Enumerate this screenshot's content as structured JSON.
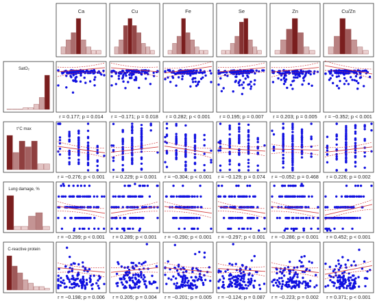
{
  "chart_data": {
    "type": "scatter",
    "title": "",
    "description_kind": "correlation matrix with marginal histograms",
    "columns": [
      "Ca",
      "Cu",
      "Fe",
      "Se",
      "Zn",
      "Cu/Zn"
    ],
    "rows": [
      "SatO₂",
      "t°C max",
      "Lung damage, %",
      "C-reactive protein"
    ],
    "column_histograms": [
      [
        2,
        4,
        6,
        10,
        4,
        2,
        1,
        1
      ],
      [
        2,
        4,
        8,
        10,
        8,
        6,
        3,
        2,
        1
      ],
      [
        1,
        3,
        5,
        10,
        6,
        4,
        2,
        1,
        1
      ],
      [
        1,
        1,
        3,
        5,
        9,
        10,
        4,
        2,
        1
      ],
      [
        1,
        4,
        7,
        10,
        6,
        2,
        1
      ],
      [
        2,
        5,
        10,
        7,
        4,
        2,
        1
      ]
    ],
    "row_histograms": [
      [
        0.1,
        0.1,
        0.1,
        0.5,
        0.5,
        1.5,
        3.5,
        10
      ],
      [
        6,
        3,
        5,
        4,
        5,
        1,
        1
      ],
      [
        10,
        1,
        1,
        4,
        5,
        1
      ],
      [
        10,
        7,
        5,
        3,
        2,
        1,
        1,
        0.5
      ]
    ],
    "stats": [
      [
        {
          "r": "0.177",
          "p": "p = 0.014"
        },
        {
          "r": "−0.171",
          "p": "p = 0.018"
        },
        {
          "r": "0.282",
          "p": "p < 0.001"
        },
        {
          "r": "0.195",
          "p": "p = 0.007"
        },
        {
          "r": "0.203",
          "p": "p = 0.005"
        },
        {
          "r": "−0.352",
          "p": "p < 0.001"
        }
      ],
      [
        {
          "r": "−0.276",
          "p": "p < 0.001"
        },
        {
          "r": "0.229",
          "p": "p = 0.001"
        },
        {
          "r": "−0.304",
          "p": "p < 0.001"
        },
        {
          "r": "−0.129",
          "p": "p = 0.074"
        },
        {
          "r": "−0.052",
          "p": "p = 0.468"
        },
        {
          "r": "0.226",
          "p": "p = 0.002"
        }
      ],
      [
        {
          "r": "−0.299",
          "p": "p < 0.001"
        },
        {
          "r": "0.289",
          "p": "p < 0.001"
        },
        {
          "r": "−0.290",
          "p": "p < 0.001"
        },
        {
          "r": "−0.297",
          "p": "p < 0.001"
        },
        {
          "r": "−0.286",
          "p": "p < 0.001"
        },
        {
          "r": "0.452",
          "p": "p < 0.001"
        }
      ],
      [
        {
          "r": "−0.198",
          "p": "p = 0.006"
        },
        {
          "r": "0.205",
          "p": "p = 0.004"
        },
        {
          "r": "−0.201",
          "p": "p = 0.005"
        },
        {
          "r": "−0.124",
          "p": "p = 0.087"
        },
        {
          "r": "−0.223",
          "p": "p = 0.002"
        },
        {
          "r": "0.371",
          "p": "p < 0.001"
        }
      ]
    ],
    "point_color": "#1010e0",
    "fit_line_color": "#d23c3c",
    "histogram_dark": "#7a1e1e",
    "histogram_light": "#f5e3e3"
  }
}
